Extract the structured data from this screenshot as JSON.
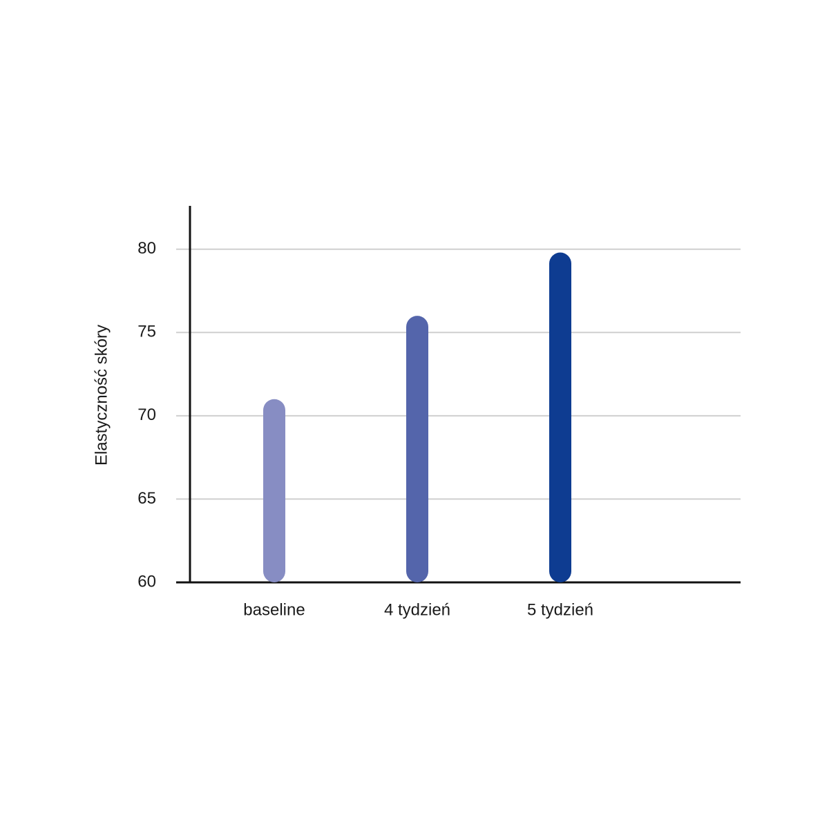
{
  "chart_data": {
    "type": "bar",
    "y_label": "Elastyczność skóry",
    "categories": [
      "baseline",
      "4 tydzień",
      "5 tydzień"
    ],
    "values": [
      71,
      76,
      79.8
    ],
    "colors": [
      "#878dc3",
      "#5465ab",
      "#0e3c91"
    ],
    "ylim": [
      60,
      82.6
    ],
    "yticks": [
      60,
      65,
      70,
      75,
      80
    ],
    "grid": true
  }
}
